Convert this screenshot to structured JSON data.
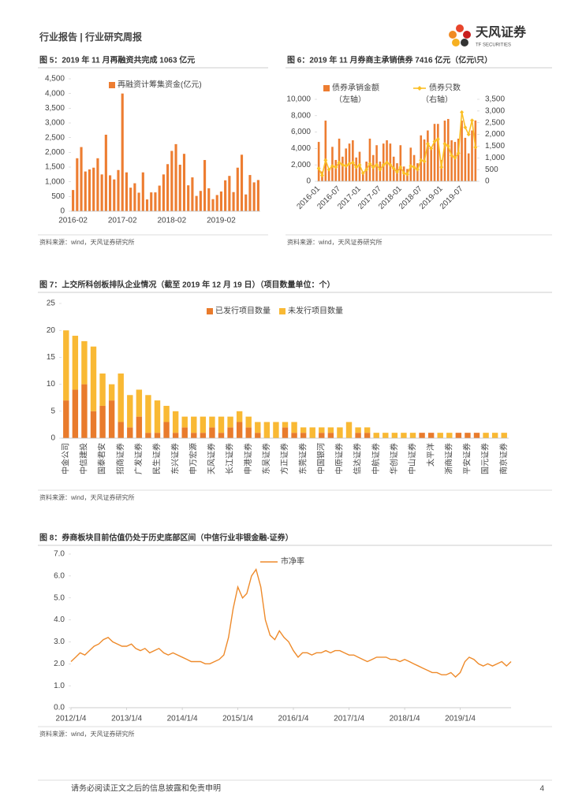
{
  "header": {
    "title": "行业报告 | 行业研究周报",
    "logo": "天风证券",
    "logo_sub": "TF SECURITIES"
  },
  "chart_data": [
    {
      "type": "bar",
      "figure_title": "图 5：2019 年 11 月再融资共完成 1063 亿元",
      "source": "资料来源：wind，天风证券研究所",
      "categories": [
        "2016-02",
        null,
        null,
        null,
        null,
        null,
        null,
        null,
        null,
        null,
        null,
        null,
        "2017-02",
        null,
        null,
        null,
        null,
        null,
        null,
        null,
        null,
        null,
        null,
        null,
        "2018-02",
        null,
        null,
        null,
        null,
        null,
        null,
        null,
        null,
        null,
        null,
        null,
        "2019-02",
        null,
        null,
        null,
        null,
        null,
        null,
        null,
        null,
        null
      ],
      "series": [
        {
          "name": "再融资计筹集资金(亿元)",
          "color": "#ed7d31",
          "values": [
            720,
            1800,
            2180,
            1350,
            1420,
            1480,
            1800,
            1250,
            2600,
            1220,
            1080,
            1400,
            4000,
            1320,
            800,
            950,
            630,
            1320,
            400,
            640,
            640,
            870,
            1250,
            1600,
            2050,
            2280,
            1580,
            1950,
            880,
            1150,
            520,
            690,
            1740,
            780,
            410,
            550,
            670,
            1050,
            1200,
            650,
            1480,
            1920,
            570,
            1230,
            980,
            1060
          ]
        }
      ],
      "ylim": [
        0,
        4500
      ],
      "yticks": [
        0,
        500,
        {
          "value": 1000,
          "label": "1,000"
        },
        {
          "value": 1500,
          "label": "1,500"
        },
        {
          "value": 2000,
          "label": "2,000"
        },
        {
          "value": 2500,
          "label": "2,500"
        },
        {
          "value": 3000,
          "label": "3,000"
        },
        {
          "value": 3500,
          "label": "3,500"
        },
        {
          "value": 4000,
          "label": "4,000"
        },
        {
          "value": 4500,
          "label": "4,500"
        }
      ],
      "grid": false,
      "legend": "top"
    },
    {
      "type": "bar_line",
      "figure_title": "图 6：2019 年 11 月券商主承销债券 7416 亿元（亿元\\只）",
      "source": "资料来源：wind，天风证券研究所",
      "categories": [
        "2016-01",
        null,
        null,
        null,
        null,
        null,
        "2016-07",
        null,
        null,
        null,
        null,
        null,
        "2017-01",
        null,
        null,
        null,
        null,
        null,
        "2017-07",
        null,
        null,
        null,
        null,
        null,
        "2018-01",
        null,
        null,
        null,
        null,
        null,
        "2018-07",
        null,
        null,
        null,
        null,
        null,
        "2019-01",
        null,
        null,
        null,
        null,
        null,
        "2019-07",
        null,
        null,
        null,
        null
      ],
      "series": [
        {
          "name": "债券承销金额",
          "axis_label": "（左轴）",
          "color": "#ed7d31",
          "axis": "y",
          "values": [
            4800,
            1200,
            7400,
            1500,
            4200,
            2600,
            5200,
            3000,
            4000,
            4600,
            5000,
            2900,
            3600,
            1000,
            2400,
            5200,
            3200,
            4400,
            2400,
            4600,
            5000,
            4600,
            3000,
            2200,
            4400,
            1800,
            1500,
            4100,
            3200,
            2200,
            5600,
            5100,
            6200,
            4100,
            7000,
            7000,
            2600,
            7400,
            7600,
            5000,
            4800,
            5200,
            7400,
            5300,
            3400,
            6200,
            7416
          ]
        },
        {
          "name": "债券只数",
          "axis_label": "（右轴）",
          "color": "#fbbf24",
          "axis": "y2",
          "values": [
            550,
            250,
            900,
            500,
            650,
            600,
            800,
            700,
            650,
            750,
            800,
            600,
            700,
            350,
            500,
            750,
            600,
            700,
            500,
            700,
            800,
            700,
            550,
            400,
            600,
            350,
            300,
            650,
            600,
            500,
            900,
            850,
            1600,
            1400,
            1700,
            1800,
            600,
            1600,
            1500,
            1100,
            1000,
            1200,
            2950,
            2300,
            2000,
            2600,
            1450
          ]
        }
      ],
      "ylim": [
        0,
        10000
      ],
      "yticks": [
        0,
        {
          "value": 2000,
          "label": "2,000"
        },
        {
          "value": 4000,
          "label": "4,000"
        },
        {
          "value": 6000,
          "label": "6,000"
        },
        {
          "value": 8000,
          "label": "8,000"
        },
        {
          "value": 10000,
          "label": "10,000"
        }
      ],
      "y2lim": [
        0,
        3500
      ],
      "y2ticks": [
        0,
        500,
        {
          "value": 1000,
          "label": "1,000"
        },
        {
          "value": 1500,
          "label": "1,500"
        },
        {
          "value": 2000,
          "label": "2,000"
        },
        {
          "value": 2500,
          "label": "2,500"
        },
        {
          "value": 3000,
          "label": "3,000"
        },
        {
          "value": 3500,
          "label": "3,500"
        }
      ],
      "grid": false,
      "legend": "top"
    },
    {
      "type": "stacked_bar",
      "figure_title": "图 7：上交所科创板排队企业情况（截至 2019 年 12 月 19 日）（项目数量单位：个）",
      "source": "资料来源：wind，天风证券研究所",
      "categories": [
        "中金公司",
        null,
        "中信建投",
        null,
        "国泰君安",
        null,
        "招商证券",
        null,
        "广发证券",
        null,
        "民生证券",
        null,
        "东兴证券",
        null,
        "申万宏源",
        null,
        "天风证券",
        null,
        "长江证券",
        null,
        "申港证券",
        null,
        "东吴证券",
        null,
        "方正证券",
        null,
        "东莞证券",
        null,
        "中国银河",
        null,
        "中原证券",
        null,
        "信达证券",
        null,
        "中航证券",
        null,
        "华创证券",
        null,
        "中山证券",
        null,
        "太平洋",
        null,
        "浙商证券",
        null,
        "平安证券",
        null,
        "国元证券",
        null,
        "南京证券"
      ],
      "series": [
        {
          "name": "已发行项目数量",
          "color": "#e97b2c",
          "values": [
            7,
            9,
            10,
            5,
            6,
            7,
            3,
            2,
            4,
            1,
            1,
            3,
            1,
            2,
            1,
            1,
            2,
            1,
            2,
            3,
            2,
            1,
            0,
            0,
            2,
            1,
            1,
            0,
            1,
            1,
            0,
            0,
            1,
            1,
            0,
            0,
            0,
            0,
            0,
            1,
            1,
            0,
            0,
            1,
            1,
            1,
            0,
            0,
            0
          ]
        },
        {
          "name": "未发行项目数量",
          "color": "#f9b934",
          "values": [
            13,
            10,
            8,
            12,
            6,
            3,
            9,
            6,
            5,
            7,
            6,
            3,
            4,
            2,
            3,
            3,
            2,
            3,
            2,
            2,
            2,
            2,
            3,
            3,
            1,
            2,
            1,
            2,
            1,
            1,
            2,
            3,
            1,
            1,
            1,
            1,
            1,
            1,
            1,
            0,
            0,
            1,
            1,
            0,
            0,
            0,
            1,
            1,
            1
          ]
        }
      ],
      "ylim": [
        0,
        25
      ],
      "yticks": [
        0,
        5,
        10,
        15,
        20,
        25
      ],
      "grid": false,
      "legend": "top"
    },
    {
      "type": "line",
      "figure_title": "图 8：券商板块目前估值仍处于历史底部区间（中信行业非银金融-证券）",
      "source": "资料来源：wind，天风证券研究所",
      "x": [
        "2012/1/4",
        "2012/2/4",
        "2012/3/4",
        "2012/4/4",
        "2012/5/4",
        "2012/6/4",
        "2012/7/4",
        "2012/8/4",
        "2012/9/4",
        "2012/10/4",
        "2012/11/4",
        "2012/12/4",
        "2013/1/4",
        "2013/2/4",
        "2013/3/4",
        "2013/4/4",
        "2013/5/4",
        "2013/6/4",
        "2013/7/4",
        "2013/8/4",
        "2013/9/4",
        "2013/10/4",
        "2013/11/4",
        "2013/12/4",
        "2014/1/4",
        "2014/2/4",
        "2014/3/4",
        "2014/4/4",
        "2014/5/4",
        "2014/6/4",
        "2014/7/4",
        "2014/8/4",
        "2014/9/4",
        "2014/10/4",
        "2014/11/4",
        "2014/12/4",
        "2015/1/4",
        "2015/2/4",
        "2015/3/4",
        "2015/4/4",
        "2015/5/4",
        "2015/6/4",
        "2015/7/4",
        "2015/8/4",
        "2015/9/4",
        "2015/10/4",
        "2015/11/4",
        "2015/12/4",
        "2016/1/4",
        "2016/2/4",
        "2016/3/4",
        "2016/4/4",
        "2016/5/4",
        "2016/6/4",
        "2016/7/4",
        "2016/8/4",
        "2016/9/4",
        "2016/10/4",
        "2016/11/4",
        "2016/12/4",
        "2017/1/4",
        "2017/2/4",
        "2017/3/4",
        "2017/4/4",
        "2017/5/4",
        "2017/6/4",
        "2017/7/4",
        "2017/8/4",
        "2017/9/4",
        "2017/10/4",
        "2017/11/4",
        "2017/12/4",
        "2018/1/4",
        "2018/2/4",
        "2018/3/4",
        "2018/4/4",
        "2018/5/4",
        "2018/6/4",
        "2018/7/4",
        "2018/8/4",
        "2018/9/4",
        "2018/10/4",
        "2018/11/4",
        "2018/12/4",
        "2019/1/4",
        "2019/2/4",
        "2019/3/4",
        "2019/4/4",
        "2019/5/4",
        "2019/6/4",
        "2019/7/4",
        "2019/8/4",
        "2019/9/4",
        "2019/10/4",
        "2019/11/4",
        "2019/12/4"
      ],
      "series": [
        {
          "name": "市净率",
          "color": "#ee8a2a",
          "values": [
            2.1,
            2.3,
            2.5,
            2.4,
            2.6,
            2.8,
            2.9,
            3.1,
            3.2,
            3.0,
            2.9,
            2.8,
            2.8,
            2.9,
            2.7,
            2.6,
            2.7,
            2.5,
            2.6,
            2.7,
            2.5,
            2.4,
            2.5,
            2.4,
            2.3,
            2.2,
            2.1,
            2.1,
            2.1,
            2.0,
            2.0,
            2.1,
            2.2,
            2.4,
            3.2,
            4.5,
            5.5,
            5.0,
            5.2,
            6.0,
            6.3,
            5.5,
            4.0,
            3.3,
            3.1,
            3.5,
            3.2,
            3.0,
            2.6,
            2.3,
            2.5,
            2.5,
            2.4,
            2.5,
            2.5,
            2.6,
            2.5,
            2.6,
            2.6,
            2.5,
            2.4,
            2.4,
            2.3,
            2.2,
            2.1,
            2.2,
            2.3,
            2.3,
            2.3,
            2.2,
            2.2,
            2.1,
            2.2,
            2.1,
            2.0,
            1.9,
            1.8,
            1.7,
            1.6,
            1.6,
            1.5,
            1.5,
            1.6,
            1.4,
            1.6,
            2.1,
            2.3,
            2.2,
            2.0,
            1.9,
            2.0,
            1.9,
            2.0,
            2.1,
            1.9,
            2.1
          ]
        }
      ],
      "xlim": [
        "2012/1/4",
        "2019/12/4"
      ],
      "xticks": [
        "2012/1/4",
        "2013/1/4",
        "2014/1/4",
        "2015/1/4",
        "2016/1/4",
        "2017/1/4",
        "2018/1/4",
        "2019/1/4"
      ],
      "ylim": [
        0,
        7
      ],
      "yticks": [
        {
          "value": 0,
          "label": "0.0"
        },
        {
          "value": 1,
          "label": "1.0"
        },
        {
          "value": 2,
          "label": "2.0"
        },
        {
          "value": 3,
          "label": "3.0"
        },
        {
          "value": 4,
          "label": "4.0"
        },
        {
          "value": 5,
          "label": "5.0"
        },
        {
          "value": 6,
          "label": "6.0"
        },
        {
          "value": 7,
          "label": "7.0"
        }
      ],
      "grid": false,
      "legend": "top"
    }
  ],
  "footer": {
    "disclaimer": "请务必阅读正文之后的信息披露和免责申明",
    "page": 4
  }
}
